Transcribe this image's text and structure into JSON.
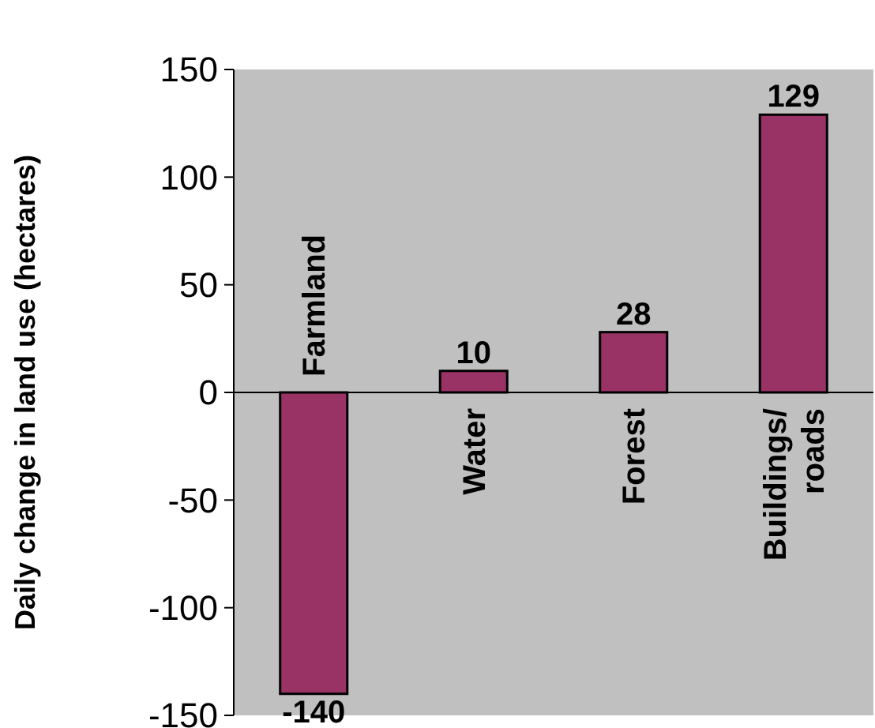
{
  "chart_data": {
    "type": "bar",
    "ylabel": "Daily change in land use (hectares)",
    "categories": [
      "Farmland",
      "Water",
      "Forest",
      "Buildings/\nroads"
    ],
    "values": [
      -140,
      10,
      28,
      129
    ],
    "color": "#993366",
    "ylim": [
      -150,
      150
    ],
    "yticks": [
      -150,
      -100,
      -50,
      0,
      50,
      100,
      150
    ],
    "data_labels": true,
    "grid": false
  }
}
